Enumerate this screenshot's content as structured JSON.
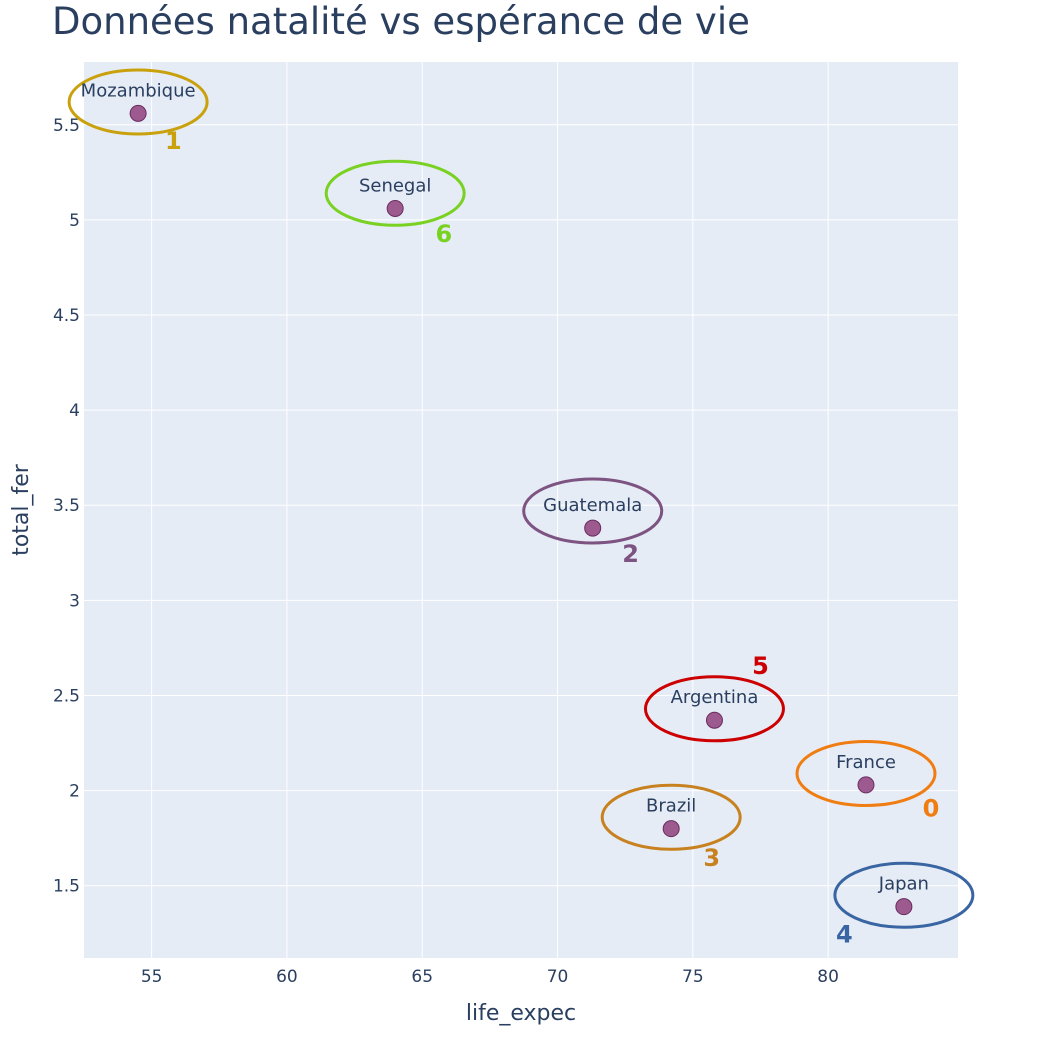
{
  "chart_data": {
    "type": "scatter",
    "title": "Données natalité vs espérance de vie",
    "xlabel": "life_expec",
    "ylabel": "total_fer",
    "xlim": [
      52.5,
      84.8
    ],
    "ylim": [
      1.12,
      5.83
    ],
    "x_ticks": [
      55,
      60,
      65,
      70,
      75,
      80
    ],
    "y_ticks": [
      1.5,
      2,
      2.5,
      3,
      3.5,
      4,
      4.5,
      5,
      5.5
    ],
    "grid": true,
    "background": "#e5ecf6",
    "marker_color": "#9c5a8f",
    "marker_edge": "#6a2c5e",
    "points": [
      {
        "label": "Mozambique",
        "x": 54.5,
        "y": 5.56
      },
      {
        "label": "Senegal",
        "x": 64.0,
        "y": 5.06
      },
      {
        "label": "Guatemala",
        "x": 71.3,
        "y": 3.38
      },
      {
        "label": "Argentina",
        "x": 75.8,
        "y": 2.37
      },
      {
        "label": "France",
        "x": 81.4,
        "y": 2.03
      },
      {
        "label": "Brazil",
        "x": 74.2,
        "y": 1.8
      },
      {
        "label": "Japan",
        "x": 82.8,
        "y": 1.39
      }
    ],
    "clusters": [
      {
        "id": "0",
        "color": "#f07d11",
        "cx": 81.4,
        "cy": 2.09,
        "num_x": 83.8,
        "num_y": 1.91
      },
      {
        "id": "1",
        "color": "#c9a10c",
        "cx": 54.5,
        "cy": 5.62,
        "num_x": 55.8,
        "num_y": 5.42
      },
      {
        "id": "2",
        "color": "#7d5382",
        "cx": 71.3,
        "cy": 3.47,
        "num_x": 72.7,
        "num_y": 3.25
      },
      {
        "id": "3",
        "color": "#c8811f",
        "cx": 74.2,
        "cy": 1.86,
        "num_x": 75.7,
        "num_y": 1.65
      },
      {
        "id": "4",
        "color": "#3a65a3",
        "cx": 82.8,
        "cy": 1.45,
        "num_x": 80.6,
        "num_y": 1.25
      },
      {
        "id": "5",
        "color": "#cc0000",
        "cx": 75.8,
        "cy": 2.43,
        "num_x": 77.5,
        "num_y": 2.66
      },
      {
        "id": "6",
        "color": "#79d121",
        "cx": 64.0,
        "cy": 5.14,
        "num_x": 65.8,
        "num_y": 4.93
      }
    ]
  }
}
